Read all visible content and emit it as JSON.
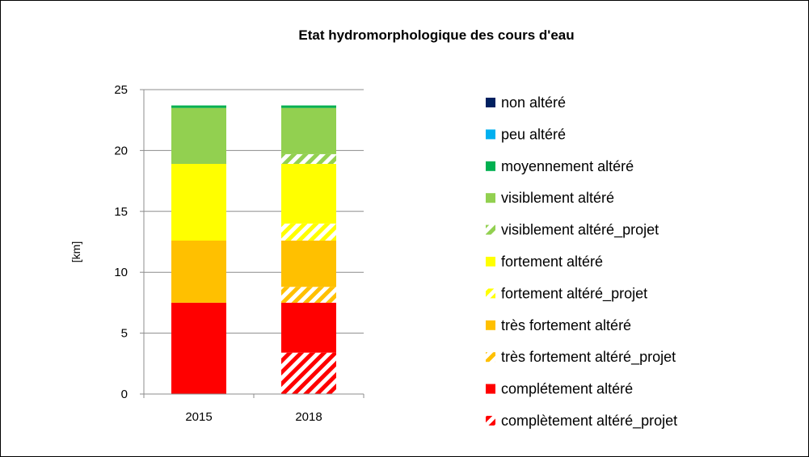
{
  "chart_data": {
    "type": "bar",
    "stacked": true,
    "title": "Etat hydromorphologique des cours d'eau",
    "xlabel": "",
    "ylabel": "[km]",
    "ylim": [
      0,
      25
    ],
    "yticks": [
      0,
      5,
      10,
      15,
      20,
      25
    ],
    "grid": true,
    "legend_position": "right",
    "categories": [
      "2015",
      "2018"
    ],
    "series": [
      {
        "name": "complètement altéré_projet",
        "color": "#ff0000",
        "hatched": true,
        "values": [
          0,
          3.4
        ]
      },
      {
        "name": "complètement altéré",
        "color": "#ff0000",
        "hatched": false,
        "values": [
          7.5,
          4.1
        ]
      },
      {
        "name": "très fortement altéré_projet",
        "color": "#ffc000",
        "hatched": true,
        "values": [
          0,
          1.3
        ]
      },
      {
        "name": "très fortement altéré",
        "color": "#ffc000",
        "hatched": false,
        "values": [
          5.1,
          3.8
        ]
      },
      {
        "name": "fortement altéré_projet",
        "color": "#ffff00",
        "hatched": true,
        "values": [
          0,
          1.4
        ]
      },
      {
        "name": "fortement altéré",
        "color": "#ffff00",
        "hatched": false,
        "values": [
          6.3,
          4.9
        ]
      },
      {
        "name": "visiblement altéré_projet",
        "color": "#92d050",
        "hatched": true,
        "values": [
          0,
          0.8
        ]
      },
      {
        "name": "visiblement altéré",
        "color": "#92d050",
        "hatched": false,
        "values": [
          4.6,
          3.8
        ]
      },
      {
        "name": "moyennement altéré",
        "color": "#00b050",
        "hatched": false,
        "values": [
          0.2,
          0.2
        ]
      },
      {
        "name": "peu altéré",
        "color": "#00b0f0",
        "hatched": false,
        "values": [
          0,
          0
        ]
      },
      {
        "name": "non altéré",
        "color": "#002060",
        "hatched": false,
        "values": [
          0,
          0
        ]
      }
    ],
    "legend": [
      "non altéré",
      "peu altéré",
      "moyennement altéré",
      "visiblement altéré",
      "visiblement altéré_projet",
      "fortement altéré",
      "fortement altéré_projet",
      "très fortement altéré",
      "très fortement altéré_projet",
      "complétement altéré",
      "complètement altéré_projet"
    ]
  }
}
